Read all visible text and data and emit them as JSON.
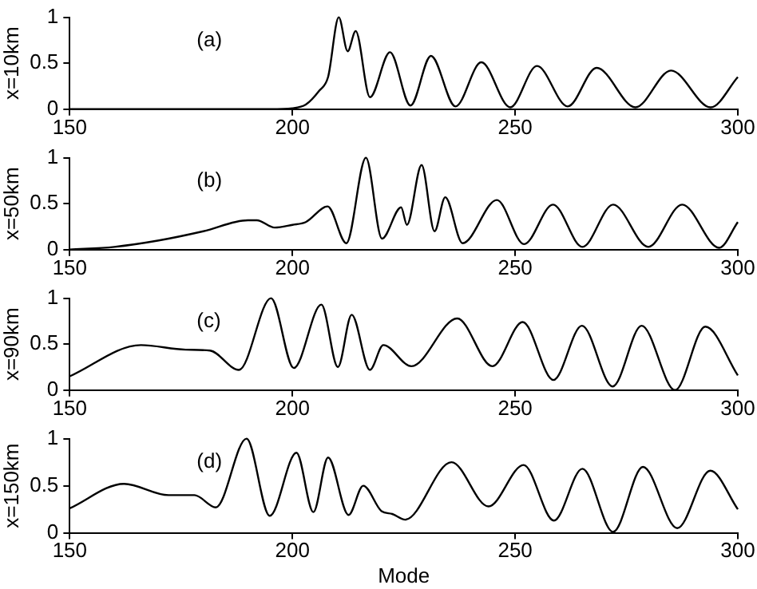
{
  "chart_data": [
    {
      "type": "line",
      "ylabel": "x=10km",
      "annotations": [
        "(a)"
      ],
      "xlim": [
        150,
        300
      ],
      "xticks": [
        150,
        200,
        250,
        300
      ],
      "ylim": [
        0,
        1
      ],
      "yticks": [
        0,
        0.5,
        1
      ],
      "grid": false,
      "legend": false,
      "marker": "none",
      "line_style": "solid",
      "series": [
        {
          "color": "#000000",
          "x": [
            150,
            170,
            195,
            200,
            203,
            206,
            208,
            210.4,
            212.4,
            214.2,
            217.4,
            221.9,
            226.5,
            231.1,
            236.6,
            242.4,
            248.9,
            254.9,
            261.8,
            268.3,
            277,
            285,
            293.9,
            300
          ],
          "values": [
            0,
            0,
            0,
            0.01,
            0.05,
            0.2,
            0.35,
            1.0,
            0.63,
            0.85,
            0.13,
            0.62,
            0.04,
            0.58,
            0.03,
            0.51,
            0.02,
            0.47,
            0.03,
            0.45,
            0.02,
            0.42,
            0.02,
            0.35
          ]
        }
      ]
    },
    {
      "type": "line",
      "ylabel": "x=50km",
      "annotations": [
        "(b)"
      ],
      "xlim": [
        150,
        300
      ],
      "xticks": [
        150,
        200,
        250,
        300
      ],
      "ylim": [
        0,
        1
      ],
      "yticks": [
        0,
        0.5,
        1
      ],
      "grid": false,
      "legend": false,
      "marker": "none",
      "line_style": "solid",
      "series": [
        {
          "color": "#000000",
          "x": [
            150,
            160,
            170,
            180,
            190,
            192,
            196,
            200,
            203,
            207.9,
            212.1,
            216.5,
            220.1,
            224.4,
            225.7,
            229,
            231.9,
            234.3,
            238.2,
            245.9,
            252,
            258.5,
            265.1,
            272,
            279.9,
            287.5,
            295.8,
            300
          ],
          "values": [
            0,
            0.03,
            0.1,
            0.2,
            0.32,
            0.32,
            0.24,
            0.27,
            0.3,
            0.47,
            0.07,
            1.0,
            0.12,
            0.46,
            0.27,
            0.92,
            0.2,
            0.57,
            0.07,
            0.54,
            0.06,
            0.49,
            0.03,
            0.49,
            0.03,
            0.49,
            0.02,
            0.3
          ]
        }
      ]
    },
    {
      "type": "line",
      "ylabel": "x=90km",
      "annotations": [
        "(c)"
      ],
      "xlim": [
        150,
        300
      ],
      "xticks": [
        150,
        200,
        250,
        300
      ],
      "ylim": [
        0,
        1
      ],
      "yticks": [
        0,
        0.5,
        1
      ],
      "grid": false,
      "legend": false,
      "marker": "none",
      "line_style": "solid",
      "series": [
        {
          "color": "#000000",
          "x": [
            150,
            166,
            176,
            181.5,
            188,
            195.2,
            200.3,
            206.5,
            210.2,
            213.3,
            217.4,
            220.4,
            226.7,
            237,
            244.9,
            251.7,
            258.6,
            265,
            271.9,
            278.4,
            285.9,
            292.7,
            300
          ],
          "values": [
            0.15,
            0.49,
            0.44,
            0.43,
            0.22,
            1.0,
            0.24,
            0.93,
            0.25,
            0.82,
            0.22,
            0.49,
            0.26,
            0.78,
            0.26,
            0.74,
            0.11,
            0.7,
            0.04,
            0.7,
            0.0,
            0.69,
            0.16
          ]
        }
      ]
    },
    {
      "type": "line",
      "ylabel": "x=150km",
      "xlabel": "Mode",
      "annotations": [
        "(d)"
      ],
      "xlim": [
        150,
        300
      ],
      "xticks": [
        150,
        200,
        250,
        300
      ],
      "ylim": [
        0,
        1
      ],
      "yticks": [
        0,
        0.5,
        1
      ],
      "grid": false,
      "legend": false,
      "marker": "none",
      "line_style": "solid",
      "series": [
        {
          "color": "#000000",
          "x": [
            150,
            162.2,
            172.2,
            178,
            182.8,
            189.7,
            194.9,
            200.9,
            204.7,
            208,
            212.6,
            215.9,
            220,
            222.4,
            225.3,
            235.7,
            244,
            251.9,
            258.7,
            265.1,
            272,
            278.7,
            286.4,
            293.8,
            300
          ],
          "values": [
            0.26,
            0.52,
            0.4,
            0.4,
            0.27,
            1.0,
            0.18,
            0.85,
            0.22,
            0.8,
            0.19,
            0.5,
            0.23,
            0.2,
            0.14,
            0.75,
            0.28,
            0.72,
            0.13,
            0.68,
            0.01,
            0.7,
            0.05,
            0.66,
            0.25
          ]
        }
      ]
    }
  ]
}
